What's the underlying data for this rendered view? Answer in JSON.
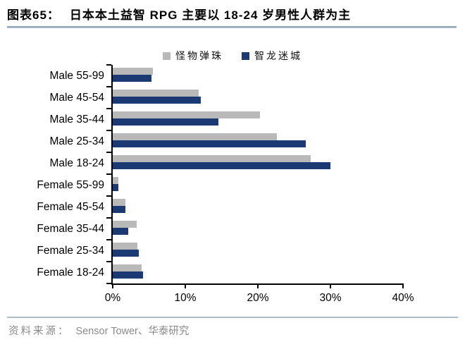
{
  "header": {
    "figure_label": "图表65：",
    "title": "日本本土益智 RPG 主要以 18-24 岁男性人群为主"
  },
  "chart_data": {
    "type": "bar",
    "orientation": "horizontal",
    "title": "",
    "xlabel": "",
    "ylabel": "",
    "categories": [
      "Male 55-99",
      "Male 45-54",
      "Male 35-44",
      "Male 25-34",
      "Male 18-24",
      "Female 55-99",
      "Female 45-54",
      "Female 35-44",
      "Female 25-34",
      "Female 18-24"
    ],
    "series": [
      {
        "name": "怪物弹珠",
        "color": "#b9b9b9",
        "values": [
          5.5,
          11.8,
          20.3,
          22.6,
          27.3,
          0.8,
          1.7,
          3.3,
          3.4,
          4.0
        ]
      },
      {
        "name": "智龙迷城",
        "color": "#1b3a73",
        "values": [
          5.3,
          12.1,
          14.6,
          26.6,
          30.0,
          0.8,
          1.7,
          2.1,
          3.6,
          4.2
        ]
      }
    ],
    "xlim": [
      0,
      40
    ],
    "x_ticks": [
      "0%",
      "10%",
      "20%",
      "30%",
      "40%"
    ],
    "grid": false,
    "legend_position": "top-center",
    "axis_color": "#000000"
  },
  "footer": {
    "label": "资料来源：",
    "source": "Sensor Tower、华泰研究"
  }
}
